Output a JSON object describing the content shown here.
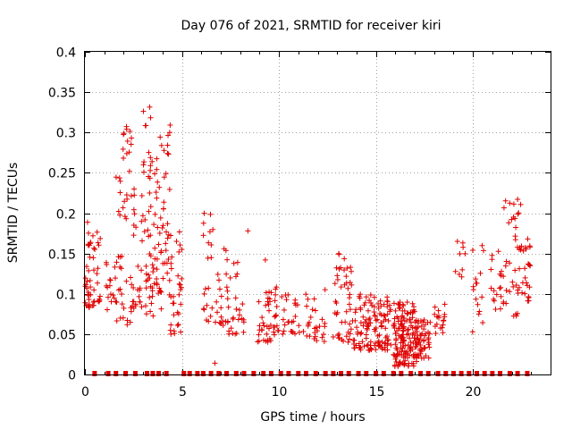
{
  "chart_data": {
    "type": "scatter",
    "title": "Day 076 of 2021, SRMTID for receiver kiri",
    "xlabel": "GPS time / hours",
    "ylabel": "SRMTID / TECUs",
    "xlim": [
      0,
      24
    ],
    "ylim": [
      0,
      0.4
    ],
    "x_ticks": [
      0,
      5,
      10,
      15,
      20
    ],
    "x_tick_labels": [
      "0",
      "5",
      "10",
      "15",
      "20"
    ],
    "y_ticks": [
      0,
      0.05,
      0.1,
      0.15,
      0.2,
      0.25,
      0.3,
      0.35,
      0.4
    ],
    "y_tick_labels": [
      "0",
      "0.05",
      "0.1",
      "0.15",
      "0.2",
      "0.25",
      "0.3",
      "0.35",
      "0.4"
    ],
    "grid": true,
    "marker": "+",
    "color": "#e00000",
    "series": [
      {
        "name": "SRMTID",
        "clusters": [
          {
            "x_range": [
              0.0,
              0.3
            ],
            "y_range": [
              0.08,
              0.2
            ],
            "count": 28
          },
          {
            "x_range": [
              0.4,
              0.8
            ],
            "y_range": [
              0.08,
              0.21
            ],
            "count": 22
          },
          {
            "x_range": [
              1.1,
              1.6
            ],
            "y_range": [
              0.08,
              0.14
            ],
            "count": 16
          },
          {
            "x_range": [
              1.6,
              2.4
            ],
            "y_range": [
              0.06,
              0.32
            ],
            "count": 48
          },
          {
            "x_range": [
              2.4,
              3.0
            ],
            "y_range": [
              0.08,
              0.23
            ],
            "count": 28
          },
          {
            "x_range": [
              3.0,
              3.7
            ],
            "y_range": [
              0.07,
              0.35
            ],
            "count": 55
          },
          {
            "x_range": [
              3.7,
              4.4
            ],
            "y_range": [
              0.08,
              0.32
            ],
            "count": 50
          },
          {
            "x_range": [
              4.4,
              5.0
            ],
            "y_range": [
              0.05,
              0.2
            ],
            "count": 32
          },
          {
            "x_range": [
              6.0,
              6.6
            ],
            "y_range": [
              0.06,
              0.2
            ],
            "count": 20
          },
          {
            "x_range": [
              6.7,
              7.4
            ],
            "y_range": [
              0.06,
              0.16
            ],
            "count": 24
          },
          {
            "x_range": [
              7.4,
              8.2
            ],
            "y_range": [
              0.05,
              0.14
            ],
            "count": 24
          },
          {
            "x_range": [
              8.9,
              10.0
            ],
            "y_range": [
              0.04,
              0.11
            ],
            "count": 46
          },
          {
            "x_range": [
              10.0,
              11.0
            ],
            "y_range": [
              0.05,
              0.1
            ],
            "count": 22
          },
          {
            "x_range": [
              11.0,
              12.5
            ],
            "y_range": [
              0.04,
              0.11
            ],
            "count": 30
          },
          {
            "x_range": [
              12.8,
              13.8
            ],
            "y_range": [
              0.04,
              0.15
            ],
            "count": 46
          },
          {
            "x_range": [
              13.8,
              14.8
            ],
            "y_range": [
              0.03,
              0.1
            ],
            "count": 60
          },
          {
            "x_range": [
              14.9,
              15.8
            ],
            "y_range": [
              0.03,
              0.1
            ],
            "count": 60
          },
          {
            "x_range": [
              15.9,
              17.1
            ],
            "y_range": [
              0.01,
              0.09
            ],
            "count": 150
          },
          {
            "x_range": [
              17.1,
              17.8
            ],
            "y_range": [
              0.02,
              0.07
            ],
            "count": 50
          },
          {
            "x_range": [
              18.0,
              18.6
            ],
            "y_range": [
              0.05,
              0.09
            ],
            "count": 18
          },
          {
            "x_range": [
              19.1,
              19.6
            ],
            "y_range": [
              0.12,
              0.17
            ],
            "count": 8
          },
          {
            "x_range": [
              19.9,
              20.6
            ],
            "y_range": [
              0.05,
              0.17
            ],
            "count": 16
          },
          {
            "x_range": [
              20.9,
              21.6
            ],
            "y_range": [
              0.08,
              0.17
            ],
            "count": 20
          },
          {
            "x_range": [
              21.6,
              22.6
            ],
            "y_range": [
              0.07,
              0.22
            ],
            "count": 40
          },
          {
            "x_range": [
              22.6,
              23.0
            ],
            "y_range": [
              0.09,
              0.17
            ],
            "count": 20
          }
        ],
        "outliers": [
          [
            6.7,
            0.014
          ],
          [
            8.4,
            0.178
          ],
          [
            9.3,
            0.142
          ],
          [
            13.1,
            0.149
          ],
          [
            19.2,
            0.165
          ]
        ],
        "zero_values_x": [
          0.5,
          1.2,
          1.6,
          2.1,
          2.6,
          3.2,
          3.5,
          3.8,
          4.2,
          5.1,
          5.4,
          5.8,
          6.1,
          6.5,
          6.9,
          7.3,
          7.8,
          8.2,
          8.7,
          9.2,
          9.6,
          10.1,
          10.5,
          11.0,
          11.4,
          11.9,
          12.4,
          12.8,
          13.2,
          13.6,
          14.1,
          14.5,
          15.0,
          15.4,
          15.9,
          16.3,
          16.8,
          17.3,
          17.7,
          18.2,
          18.6,
          19.0,
          19.4,
          19.8,
          20.2,
          20.6,
          21.0,
          21.4,
          21.9,
          22.3,
          22.8
        ]
      }
    ]
  }
}
